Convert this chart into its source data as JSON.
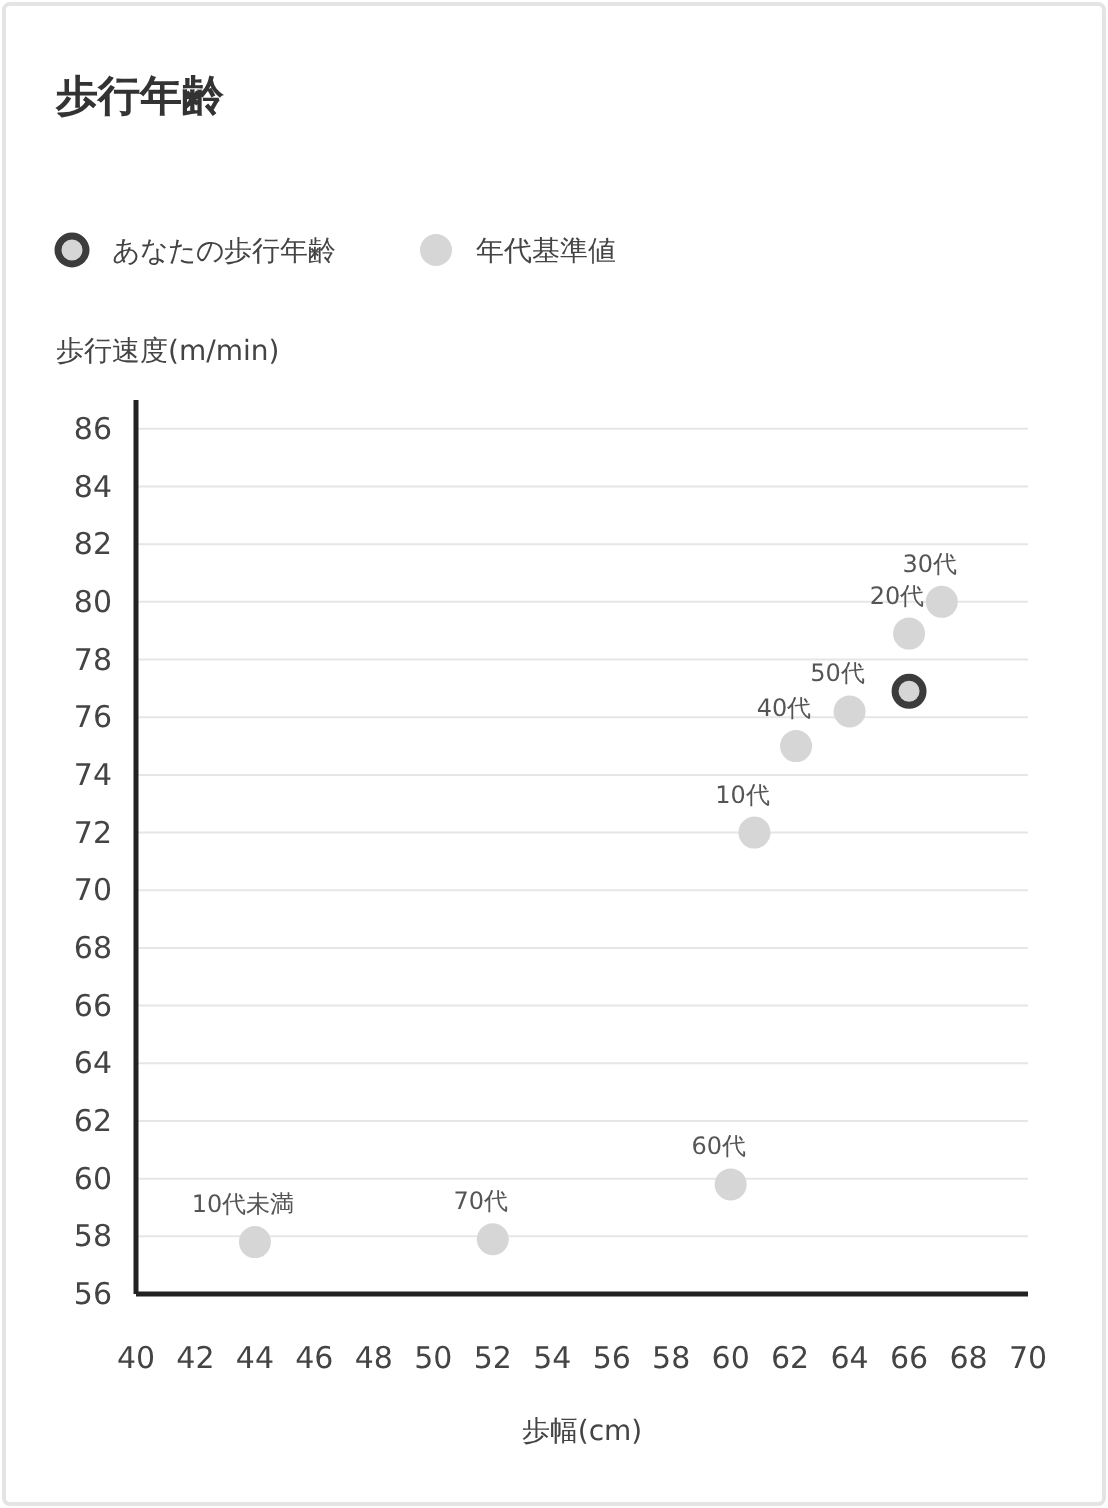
{
  "chart_data": {
    "type": "scatter",
    "title": "歩行年齢",
    "xlabel": "歩幅(cm)",
    "ylabel": "歩行速度(m/min)",
    "series": [
      {
        "name": "あなたの歩行年齢",
        "color": "#3c3c3c",
        "x": [
          66
        ],
        "values": [
          76.9
        ]
      },
      {
        "name": "年代基準値",
        "color": "#d6d6d6",
        "x": [
          44,
          52,
          60,
          60.8,
          62.2,
          64,
          66,
          67.1
        ],
        "values": [
          57.8,
          57.9,
          59.8,
          72,
          75,
          76.2,
          78.9,
          80
        ]
      }
    ],
    "annotations": [
      {
        "text": "10代未満",
        "x": 44,
        "y": 57.8
      },
      {
        "text": "70代",
        "x": 52,
        "y": 57.9
      },
      {
        "text": "60代",
        "x": 60,
        "y": 59.8
      },
      {
        "text": "10代",
        "x": 60.8,
        "y": 72
      },
      {
        "text": "40代",
        "x": 62.2,
        "y": 75
      },
      {
        "text": "50代",
        "x": 64,
        "y": 76.2
      },
      {
        "text": "20代",
        "x": 66,
        "y": 78.9
      },
      {
        "text": "30代",
        "x": 67.1,
        "y": 80
      }
    ],
    "xlim": [
      40,
      70
    ],
    "xticks": [
      40,
      42,
      44,
      46,
      48,
      50,
      52,
      54,
      56,
      58,
      60,
      62,
      64,
      66,
      68,
      70
    ],
    "ylim": [
      56,
      87
    ],
    "yticks": [
      56,
      58,
      60,
      62,
      64,
      66,
      68,
      70,
      72,
      74,
      76,
      78,
      80,
      82,
      84,
      86
    ],
    "grid": "y",
    "legend": "top left",
    "marker": "circle"
  }
}
